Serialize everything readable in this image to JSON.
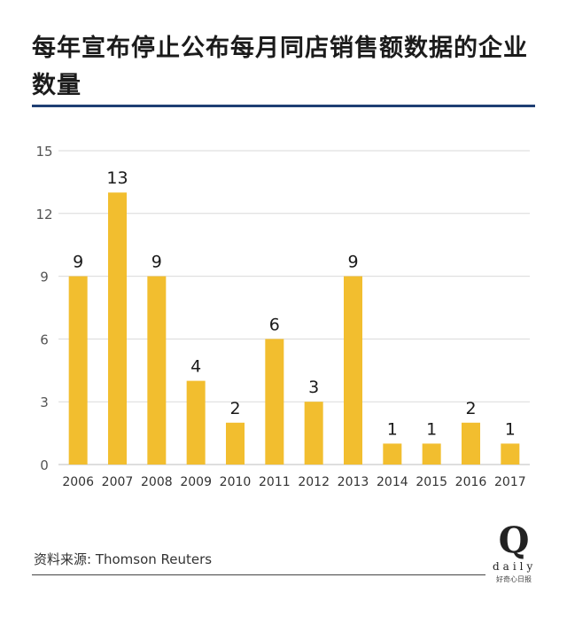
{
  "title": "每年宣布停止公布每月同店销售额数据的企业数量",
  "source": "资料来源: Thomson Reuters",
  "logo": {
    "letter": "Q",
    "word": "daily",
    "sub": "好奇心日报"
  },
  "colors": {
    "bar": "#F2BE2F",
    "grid": "#DADADA",
    "rule": "#1F3F73"
  },
  "chart_data": {
    "type": "bar",
    "title": "每年宣布停止公布每月同店销售额数据的企业数量",
    "xlabel": "",
    "ylabel": "",
    "categories": [
      "2006",
      "2007",
      "2008",
      "2009",
      "2010",
      "2011",
      "2012",
      "2013",
      "2014",
      "2015",
      "2016",
      "2017"
    ],
    "values": [
      9,
      13,
      9,
      4,
      2,
      6,
      3,
      9,
      1,
      1,
      2,
      1
    ],
    "ylim": [
      0,
      15
    ],
    "yticks": [
      0,
      3,
      6,
      9,
      12,
      15
    ],
    "grid": true,
    "data_labels": true
  }
}
